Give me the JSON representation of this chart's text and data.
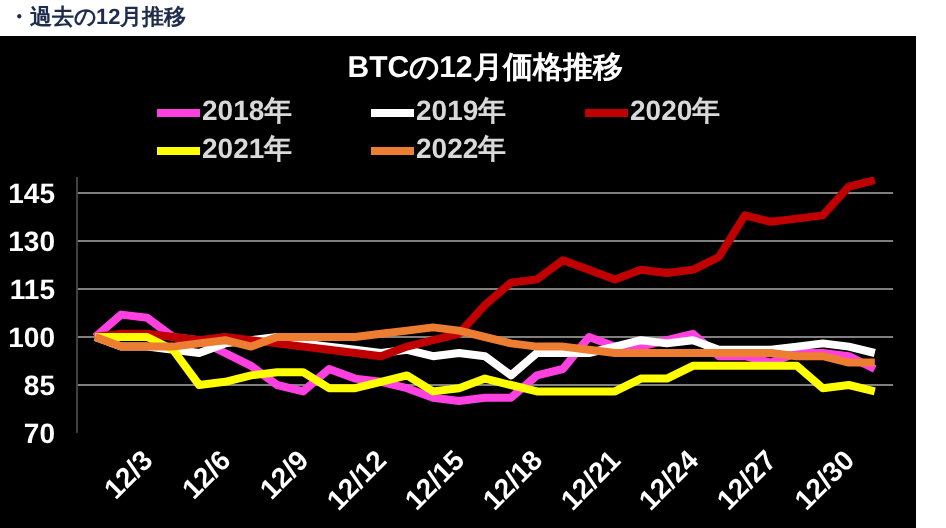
{
  "chart_data": {
    "type": "line",
    "title": "BTCの12月価格推移",
    "annotations": [
      "・過去の12月推移"
    ],
    "categories": [
      null,
      null,
      "12/3",
      null,
      null,
      "12/6",
      null,
      null,
      "12/9",
      null,
      null,
      "12/12",
      null,
      null,
      "12/15",
      null,
      null,
      "12/18",
      null,
      null,
      "12/21",
      null,
      null,
      "12/24",
      null,
      null,
      "12/27",
      null,
      null,
      "12/30",
      null
    ],
    "ylim": [
      70,
      150
    ],
    "yticks": [
      70,
      85,
      100,
      115,
      130,
      145
    ],
    "grid": "y",
    "legend": "top",
    "marker": "none",
    "line_style": "solid",
    "series": [
      {
        "name": "2018年",
        "color": "#ff40e0",
        "values": [
          100,
          107,
          106,
          100,
          99,
          95,
          91,
          85,
          83,
          90,
          87,
          86,
          84,
          81,
          80,
          81,
          81,
          88,
          90,
          100,
          97,
          97,
          99,
          101,
          94,
          94,
          92,
          95,
          95,
          94,
          90
        ]
      },
      {
        "name": "2019年",
        "color": "#ffffff",
        "values": [
          100,
          97,
          97,
          96,
          95,
          98,
          99,
          100,
          98,
          97,
          96,
          95,
          96,
          94,
          95,
          94,
          88,
          95,
          95,
          95,
          97,
          99,
          98,
          99,
          96,
          96,
          96,
          97,
          98,
          97,
          95
        ]
      },
      {
        "name": "2020年",
        "color": "#c00000",
        "values": [
          100,
          101,
          101,
          100,
          99,
          100,
          99,
          98,
          97,
          96,
          95,
          94,
          97,
          99,
          101,
          110,
          117,
          118,
          124,
          121,
          118,
          121,
          120,
          121,
          125,
          138,
          136,
          137,
          138,
          147,
          149
        ]
      },
      {
        "name": "2021年",
        "color": "#ffff00",
        "values": [
          100,
          100,
          100,
          96,
          85,
          86,
          88,
          89,
          89,
          84,
          84,
          86,
          88,
          83,
          84,
          87,
          85,
          83,
          83,
          83,
          83,
          87,
          87,
          91,
          91,
          91,
          91,
          91,
          84,
          85,
          83
        ]
      },
      {
        "name": "2022年",
        "color": "#ed7d31",
        "values": [
          100,
          97,
          97,
          97,
          98,
          99,
          97,
          100,
          100,
          100,
          100,
          101,
          102,
          103,
          102,
          100,
          98,
          97,
          97,
          96,
          95,
          95,
          95,
          95,
          95,
          95,
          95,
          94,
          94,
          92,
          92
        ]
      }
    ]
  }
}
